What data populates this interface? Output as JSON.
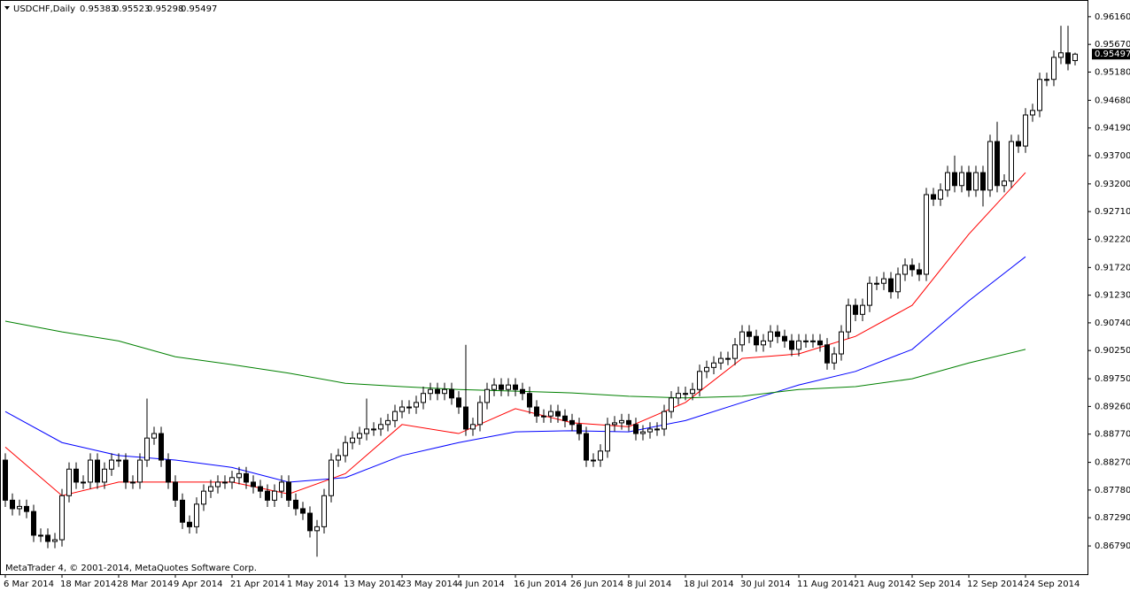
{
  "chart_data": {
    "type": "candlestick",
    "title": "USDCHF,Daily",
    "copyright": "MetaTrader 4, © 2001-2014, MetaQuotes Software Corp.",
    "categories": [
      "6 Mar 2014",
      null,
      null,
      null,
      null,
      null,
      null,
      null,
      "18 Mar 2014",
      null,
      null,
      null,
      null,
      null,
      null,
      null,
      "28 Mar 2014",
      null,
      null,
      null,
      null,
      null,
      null,
      null,
      "9 Apr 2014",
      null,
      null,
      null,
      null,
      null,
      null,
      null,
      "21 Apr 2014",
      null,
      null,
      null,
      null,
      null,
      null,
      null,
      "1 May 2014",
      null,
      null,
      null,
      null,
      null,
      null,
      null,
      "13 May 2014",
      null,
      null,
      null,
      null,
      null,
      null,
      null,
      "23 May 2014",
      null,
      null,
      null,
      null,
      null,
      null,
      null,
      "4 Jun 2014",
      null,
      null,
      null,
      null,
      null,
      null,
      null,
      "16 Jun 2014",
      null,
      null,
      null,
      null,
      null,
      null,
      null,
      "26 Jun 2014",
      null,
      null,
      null,
      null,
      null,
      null,
      null,
      "8 Jul 2014",
      null,
      null,
      null,
      null,
      null,
      null,
      null,
      "18 Jul 2014",
      null,
      null,
      null,
      null,
      null,
      null,
      null,
      "30 Jul 2014",
      null,
      null,
      null,
      null,
      null,
      null,
      null,
      "11 Aug 2014",
      null,
      null,
      null,
      null,
      null,
      null,
      null,
      "21 Aug 2014",
      null,
      null,
      null,
      null,
      null,
      null,
      null,
      "2 Sep 2014",
      null,
      null,
      null,
      null,
      null,
      null,
      null,
      "12 Sep 2014",
      null,
      null,
      null,
      null,
      null,
      null,
      null,
      "24 Sep 2014",
      null,
      null,
      null,
      null,
      null,
      null,
      null
    ],
    "open": [
      0.8831,
      0.876,
      0.8745,
      0.8749,
      0.874,
      0.8698,
      0.8698,
      0.8687,
      0.869,
      0.8768,
      0.8815,
      0.8792,
      0.8792,
      0.8831,
      0.8792,
      0.8815,
      0.8831,
      0.8831,
      0.8792,
      0.8792,
      0.8831,
      0.887,
      0.8878,
      0.8831,
      0.8792,
      0.876,
      0.8721,
      0.8713,
      0.8753,
      0.8776,
      0.8784,
      0.8792,
      0.8792,
      0.88,
      0.8807,
      0.8792,
      0.8784,
      0.8776,
      0.876,
      0.8776,
      0.8792,
      0.876,
      0.8745,
      0.8737,
      0.8706,
      0.8713,
      0.8768,
      0.8831,
      0.8839,
      0.8862,
      0.887,
      0.8878,
      0.8886,
      0.8886,
      0.8894,
      0.8901,
      0.8917,
      0.8925,
      0.8925,
      0.8933,
      0.8949,
      0.8956,
      0.8949,
      0.8956,
      0.8941,
      0.8925,
      0.8886,
      0.8894,
      0.8933,
      0.8956,
      0.8964,
      0.8956,
      0.8964,
      0.8956,
      0.8949,
      0.8925,
      0.8909,
      0.8909,
      0.8917,
      0.8909,
      0.8901,
      0.8894,
      0.8878,
      0.8831,
      0.8831,
      0.8847,
      0.8894,
      0.8897,
      0.8901,
      0.8894,
      0.8878,
      0.8881,
      0.8886,
      0.8886,
      0.8917,
      0.8941,
      0.8949,
      0.8949,
      0.8956,
      0.8988,
      0.8995,
      0.9003,
      0.9011,
      0.9011,
      0.9035,
      0.9058,
      0.905,
      0.9035,
      0.9042,
      0.9058,
      0.905,
      0.9042,
      0.9027,
      0.9042,
      0.9042,
      0.9042,
      0.9035,
      0.9003,
      0.9019,
      0.9058,
      0.9105,
      0.9089,
      0.9105,
      0.9144,
      0.9144,
      0.9152,
      0.9129,
      0.916,
      0.9176,
      0.9168,
      0.916,
      0.9301,
      0.9293,
      0.9309,
      0.934,
      0.9317,
      0.934,
      0.9309,
      0.934,
      0.9309,
      0.9395,
      0.9317,
      0.9325,
      0.9395,
      0.9387,
      0.9442,
      0.945,
      0.9505,
      0.9505,
      0.9544,
      0.9552,
      0.95383
    ],
    "high": [
      0.8843,
      0.8772,
      0.8761,
      0.8761,
      0.8752,
      0.871,
      0.871,
      0.8702,
      0.878,
      0.8827,
      0.8827,
      0.8804,
      0.8843,
      0.8843,
      0.8827,
      0.8843,
      0.8843,
      0.8843,
      0.8804,
      0.8843,
      0.894,
      0.889,
      0.889,
      0.8843,
      0.8804,
      0.8772,
      0.8733,
      0.8765,
      0.8788,
      0.8796,
      0.8804,
      0.8804,
      0.8812,
      0.8819,
      0.8819,
      0.8804,
      0.8796,
      0.8788,
      0.8788,
      0.8804,
      0.8804,
      0.8772,
      0.8757,
      0.8749,
      0.8725,
      0.878,
      0.8843,
      0.8851,
      0.8874,
      0.8882,
      0.889,
      0.894,
      0.8898,
      0.8906,
      0.8913,
      0.8929,
      0.8937,
      0.8937,
      0.8945,
      0.8961,
      0.8968,
      0.8968,
      0.8968,
      0.8968,
      0.8953,
      0.9035,
      0.8906,
      0.8945,
      0.8968,
      0.8976,
      0.8976,
      0.8976,
      0.8976,
      0.8968,
      0.8961,
      0.8937,
      0.8921,
      0.8929,
      0.8929,
      0.8921,
      0.8913,
      0.8906,
      0.889,
      0.8843,
      0.8859,
      0.8906,
      0.8909,
      0.8913,
      0.8913,
      0.8906,
      0.8893,
      0.8898,
      0.8898,
      0.8929,
      0.8953,
      0.8961,
      0.8961,
      0.8968,
      0.9,
      0.9007,
      0.9015,
      0.9023,
      0.9023,
      0.9047,
      0.907,
      0.907,
      0.9062,
      0.9054,
      0.907,
      0.907,
      0.9062,
      0.9054,
      0.9054,
      0.9054,
      0.9054,
      0.9054,
      0.9047,
      0.9031,
      0.907,
      0.9117,
      0.9117,
      0.9117,
      0.9156,
      0.9156,
      0.9164,
      0.9164,
      0.9172,
      0.9188,
      0.9188,
      0.918,
      0.9313,
      0.9313,
      0.9321,
      0.9352,
      0.937,
      0.9352,
      0.9352,
      0.9352,
      0.9352,
      0.9407,
      0.943,
      0.9337,
      0.9407,
      0.9407,
      0.9454,
      0.9462,
      0.9517,
      0.9517,
      0.9556,
      0.96,
      0.96,
      0.95523
    ],
    "low": [
      0.8748,
      0.8733,
      0.8733,
      0.8728,
      0.8686,
      0.8686,
      0.8675,
      0.8675,
      0.8678,
      0.8756,
      0.878,
      0.878,
      0.878,
      0.878,
      0.878,
      0.8803,
      0.8819,
      0.878,
      0.878,
      0.878,
      0.8819,
      0.8858,
      0.8819,
      0.878,
      0.8748,
      0.8709,
      0.8701,
      0.8701,
      0.8741,
      0.8764,
      0.8772,
      0.878,
      0.878,
      0.8788,
      0.878,
      0.8772,
      0.8764,
      0.8748,
      0.8748,
      0.8764,
      0.8748,
      0.8733,
      0.8725,
      0.8694,
      0.866,
      0.8701,
      0.8756,
      0.8819,
      0.8827,
      0.885,
      0.8858,
      0.8866,
      0.8874,
      0.8874,
      0.8882,
      0.8889,
      0.8905,
      0.8913,
      0.8913,
      0.8921,
      0.8937,
      0.8937,
      0.8937,
      0.8929,
      0.8913,
      0.8874,
      0.8874,
      0.8882,
      0.8921,
      0.8944,
      0.8944,
      0.8944,
      0.8944,
      0.8937,
      0.8913,
      0.8897,
      0.8897,
      0.8897,
      0.8897,
      0.8889,
      0.8882,
      0.8866,
      0.8819,
      0.8819,
      0.8819,
      0.8835,
      0.8882,
      0.8885,
      0.8882,
      0.8866,
      0.8866,
      0.8869,
      0.8874,
      0.8874,
      0.8905,
      0.8929,
      0.8937,
      0.8937,
      0.8944,
      0.8976,
      0.8983,
      0.8991,
      0.8999,
      0.8999,
      0.9023,
      0.9038,
      0.9023,
      0.9023,
      0.903,
      0.9038,
      0.903,
      0.9015,
      0.9015,
      0.903,
      0.903,
      0.9023,
      0.8991,
      0.8991,
      0.9007,
      0.9046,
      0.9077,
      0.9077,
      0.9093,
      0.9132,
      0.9132,
      0.9117,
      0.9117,
      0.9148,
      0.9156,
      0.9148,
      0.9148,
      0.9281,
      0.9281,
      0.9297,
      0.9305,
      0.9305,
      0.9297,
      0.9297,
      0.928,
      0.9297,
      0.9305,
      0.9305,
      0.9313,
      0.9375,
      0.9375,
      0.943,
      0.9438,
      0.9493,
      0.9493,
      0.9532,
      0.9521,
      0.95298
    ],
    "close": [
      0.876,
      0.8745,
      0.8749,
      0.874,
      0.8698,
      0.8698,
      0.8687,
      0.869,
      0.8768,
      0.8815,
      0.8792,
      0.8792,
      0.8831,
      0.8792,
      0.8815,
      0.8831,
      0.8831,
      0.8792,
      0.8792,
      0.8831,
      0.887,
      0.8878,
      0.8831,
      0.8792,
      0.876,
      0.8721,
      0.8713,
      0.8753,
      0.8776,
      0.8784,
      0.8792,
      0.8792,
      0.88,
      0.8807,
      0.8792,
      0.8784,
      0.8776,
      0.876,
      0.8776,
      0.8792,
      0.876,
      0.8745,
      0.8737,
      0.8706,
      0.8713,
      0.8768,
      0.8831,
      0.8839,
      0.8862,
      0.887,
      0.8878,
      0.8886,
      0.8886,
      0.8894,
      0.8901,
      0.8917,
      0.8925,
      0.8925,
      0.8933,
      0.8949,
      0.8956,
      0.8949,
      0.8956,
      0.8941,
      0.8925,
      0.8886,
      0.8894,
      0.8933,
      0.8956,
      0.8964,
      0.8956,
      0.8964,
      0.8956,
      0.8949,
      0.8925,
      0.8909,
      0.8909,
      0.8917,
      0.8909,
      0.8901,
      0.8894,
      0.8878,
      0.8831,
      0.8831,
      0.8847,
      0.8894,
      0.8897,
      0.8901,
      0.8894,
      0.8878,
      0.8881,
      0.8886,
      0.8886,
      0.8917,
      0.8941,
      0.8949,
      0.8949,
      0.8956,
      0.8988,
      0.8995,
      0.9003,
      0.9011,
      0.9011,
      0.9035,
      0.9058,
      0.905,
      0.9035,
      0.9042,
      0.9058,
      0.905,
      0.9042,
      0.9027,
      0.9042,
      0.9042,
      0.9042,
      0.9035,
      0.9003,
      0.9019,
      0.9058,
      0.9105,
      0.9089,
      0.9105,
      0.9144,
      0.9144,
      0.9152,
      0.9129,
      0.916,
      0.9176,
      0.9168,
      0.916,
      0.9301,
      0.9293,
      0.9309,
      0.934,
      0.9317,
      0.934,
      0.9309,
      0.934,
      0.9309,
      0.9395,
      0.9317,
      0.9325,
      0.9395,
      0.9387,
      0.9442,
      0.945,
      0.9505,
      0.9505,
      0.9544,
      0.9552,
      0.9533,
      0.95497
    ],
    "up_color": "#ffffff",
    "down_color": "#000000",
    "candle_outline": "#000000",
    "overlays": [
      {
        "color": "#ff0000",
        "x": [
          "6 Mar 2014",
          "18 Mar 2014",
          "28 Mar 2014",
          "9 Apr 2014",
          "21 Apr 2014",
          "1 May 2014",
          "13 May 2014",
          "23 May 2014",
          "4 Jun 2014",
          "16 Jun 2014",
          "26 Jun 2014",
          "8 Jul 2014",
          "18 Jul 2014",
          "30 Jul 2014",
          "11 Aug 2014",
          "21 Aug 2014",
          "2 Sep 2014",
          "12 Sep 2014",
          "24 Sep 2014"
        ],
        "values": [
          0.8854,
          0.8768,
          0.8792,
          0.8792,
          0.8792,
          0.8771,
          0.8807,
          0.8894,
          0.8878,
          0.8922,
          0.8897,
          0.889,
          0.8933,
          0.9011,
          0.9019,
          0.905,
          0.9105,
          0.9231,
          0.934
        ]
      },
      {
        "color": "#0000ff",
        "x": [
          "6 Mar 2014",
          "18 Mar 2014",
          "28 Mar 2014",
          "9 Apr 2014",
          "21 Apr 2014",
          "1 May 2014",
          "13 May 2014",
          "23 May 2014",
          "4 Jun 2014",
          "16 Jun 2014",
          "26 Jun 2014",
          "8 Jul 2014",
          "18 Jul 2014",
          "30 Jul 2014",
          "11 Aug 2014",
          "21 Aug 2014",
          "2 Sep 2014",
          "12 Sep 2014",
          "24 Sep 2014"
        ],
        "values": [
          0.8917,
          0.8862,
          0.8839,
          0.8831,
          0.8818,
          0.8792,
          0.88,
          0.8839,
          0.8862,
          0.8881,
          0.8883,
          0.8881,
          0.8901,
          0.8933,
          0.8964,
          0.8988,
          0.9027,
          0.9113,
          0.9191
        ]
      },
      {
        "color": "#008000",
        "x": [
          "6 Mar 2014",
          "18 Mar 2014",
          "28 Mar 2014",
          "9 Apr 2014",
          "21 Apr 2014",
          "1 May 2014",
          "13 May 2014",
          "23 May 2014",
          "4 Jun 2014",
          "16 Jun 2014",
          "26 Jun 2014",
          "8 Jul 2014",
          "18 Jul 2014",
          "30 Jul 2014",
          "11 Aug 2014",
          "21 Aug 2014",
          "2 Sep 2014",
          "12 Sep 2014",
          "24 Sep 2014"
        ],
        "values": [
          0.9077,
          0.9058,
          0.9042,
          0.9014,
          0.9,
          0.8985,
          0.8967,
          0.8961,
          0.8956,
          0.8953,
          0.895,
          0.8944,
          0.8941,
          0.8944,
          0.8956,
          0.8961,
          0.8975,
          0.9003,
          0.9027
        ]
      }
    ],
    "ylim": [
      0.8629,
      0.9644
    ],
    "yticks": [
      {
        "value": 0.9616,
        "label": "0.96160"
      },
      {
        "value": 0.9567,
        "label": "0.95670"
      },
      {
        "value": 0.9518,
        "label": "0.95180"
      },
      {
        "value": 0.9468,
        "label": "0.94680"
      },
      {
        "value": 0.9419,
        "label": "0.94190"
      },
      {
        "value": 0.937,
        "label": "0.93700"
      },
      {
        "value": 0.932,
        "label": "0.93200"
      },
      {
        "value": 0.9271,
        "label": "0.92710"
      },
      {
        "value": 0.9222,
        "label": "0.92220"
      },
      {
        "value": 0.9172,
        "label": "0.91720"
      },
      {
        "value": 0.9123,
        "label": "0.91230"
      },
      {
        "value": 0.9074,
        "label": "0.90740"
      },
      {
        "value": 0.9025,
        "label": "0.90250"
      },
      {
        "value": 0.8975,
        "label": "0.89750"
      },
      {
        "value": 0.8926,
        "label": "0.89260"
      },
      {
        "value": 0.8877,
        "label": "0.88770"
      },
      {
        "value": 0.8827,
        "label": "0.88270"
      },
      {
        "value": 0.8778,
        "label": "0.87780"
      },
      {
        "value": 0.8729,
        "label": "0.87290"
      },
      {
        "value": 0.8679,
        "label": "0.86790"
      }
    ]
  }
}
